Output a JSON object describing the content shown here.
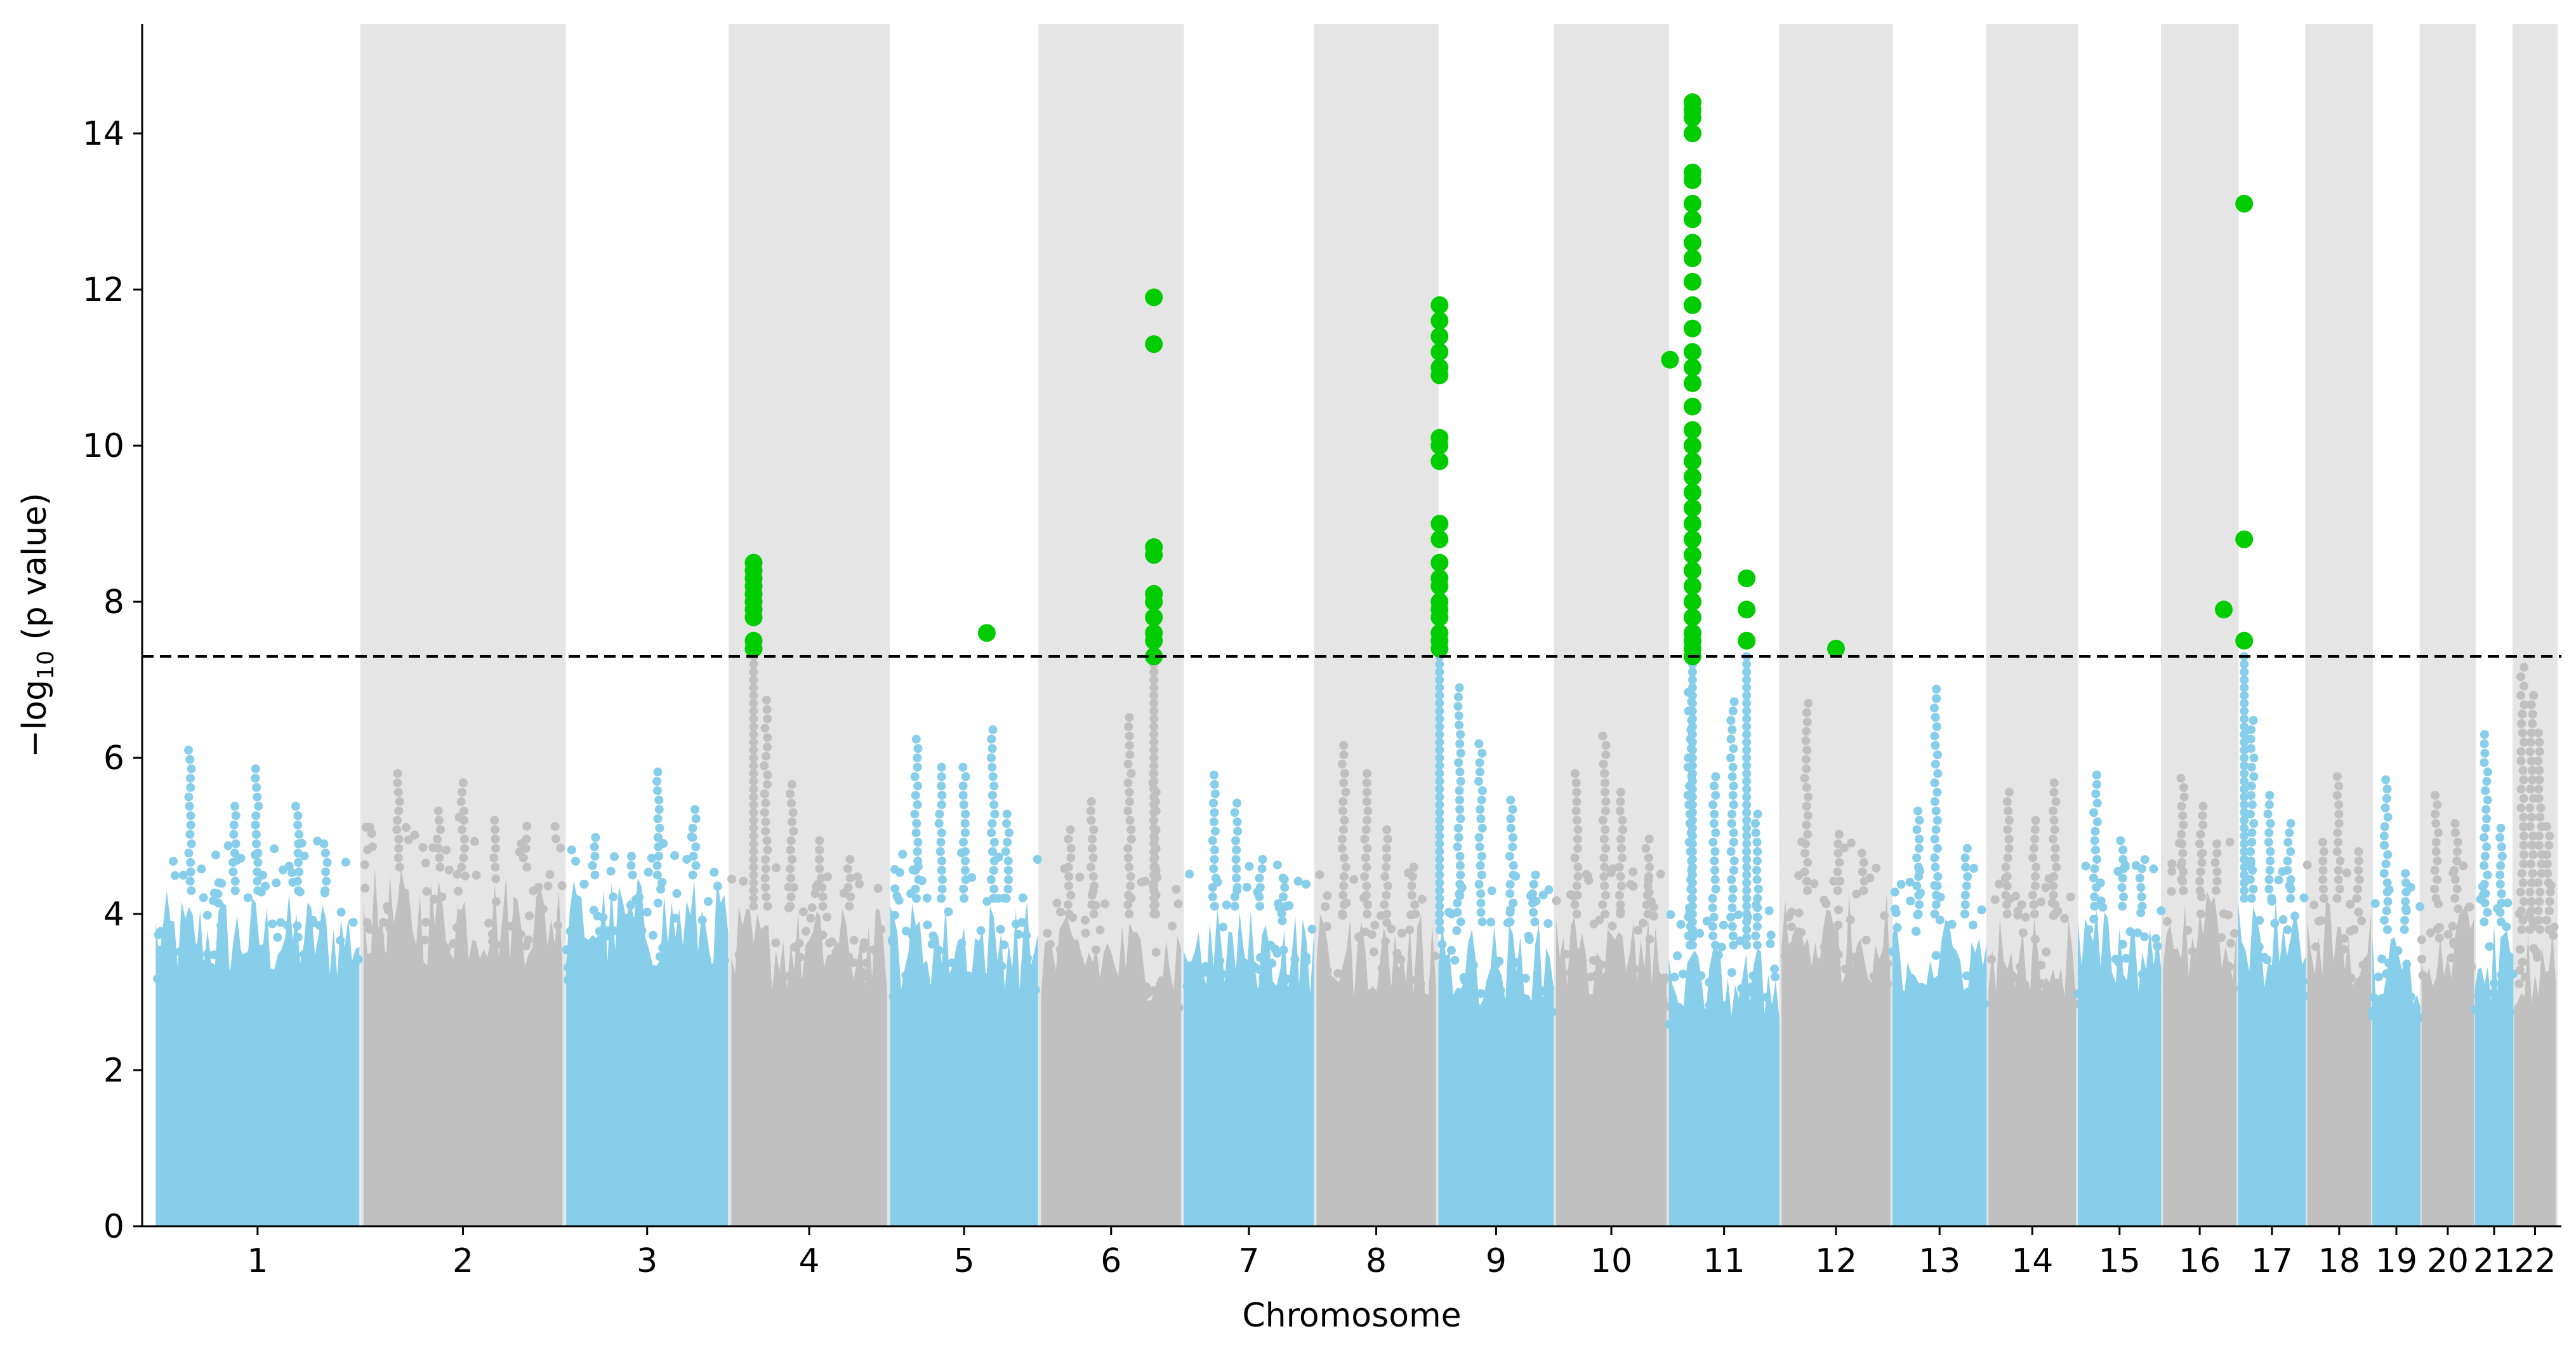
{
  "chart_data": {
    "type": "scatter",
    "subtype": "manhattan",
    "xlabel": "Chromosome",
    "ylabel_prefix": "−log",
    "ylabel_sub": "10",
    "ylabel_suffix": " (p value)",
    "ylim": [
      0,
      15.4
    ],
    "yticks": [
      0,
      2,
      4,
      6,
      8,
      10,
      12,
      14
    ],
    "significance_threshold": 7.3,
    "colors": {
      "odd_chromosome_points": "#87CEEB",
      "even_chromosome_points": "#C0C0C0",
      "significant_points": "#00CC00",
      "band": "#E5E5E5",
      "threshold_line": "#000000"
    },
    "chromosomes": [
      {
        "label": "1",
        "start": 0,
        "end": 249,
        "bg_max": 4.3,
        "peaks": [
          6.2,
          5.5,
          5.9,
          5.4,
          4.9
        ],
        "sig": []
      },
      {
        "label": "2",
        "start": 249,
        "end": 492,
        "bg_max": 4.6,
        "peaks": [
          5.9,
          5.4,
          5.7,
          5.2,
          5.0
        ],
        "sig": []
      },
      {
        "label": "3",
        "start": 492,
        "end": 690,
        "bg_max": 4.5,
        "peaks": [
          5.1,
          4.8,
          5.9,
          5.4
        ],
        "sig": []
      },
      {
        "label": "4",
        "start": 690,
        "end": 880,
        "bg_max": 4.1,
        "peaks": [
          6.8,
          5.7,
          5.0,
          4.7
        ],
        "sig": [
          {
            "x": 0.15,
            "y": [
              8.5,
              8.4,
              8.3,
              8.2,
              8.1,
              8.0,
              7.9,
              7.8,
              7.5,
              7.4
            ]
          }
        ]
      },
      {
        "label": "5",
        "start": 880,
        "end": 1061,
        "bg_max": 4.2,
        "peaks": [
          6.3,
          6.0,
          5.9,
          6.4,
          5.3
        ],
        "sig": [
          {
            "x": 0.65,
            "y": [
              7.6
            ]
          }
        ]
      },
      {
        "label": "6",
        "start": 1061,
        "end": 1232,
        "bg_max": 4.0,
        "peaks": [
          5.1,
          5.5,
          6.6,
          5.9
        ],
        "sig": [
          {
            "x": 0.8,
            "y": [
              11.9,
              11.3,
              8.7,
              8.6,
              8.1,
              8.0,
              7.8,
              7.6,
              7.5,
              7.3
            ]
          }
        ]
      },
      {
        "label": "7",
        "start": 1232,
        "end": 1391,
        "bg_max": 4.1,
        "peaks": [
          5.8,
          5.5,
          4.7,
          4.5
        ],
        "sig": []
      },
      {
        "label": "8",
        "start": 1391,
        "end": 1537,
        "bg_max": 4.0,
        "peaks": [
          6.2,
          5.9,
          5.1,
          4.7
        ],
        "sig": []
      },
      {
        "label": "9",
        "start": 1537,
        "end": 1678,
        "bg_max": 3.9,
        "peaks": [
          7.0,
          6.3,
          5.5,
          4.6
        ],
        "sig": [
          {
            "x": 0.02,
            "y": [
              11.8,
              11.6,
              11.4,
              11.2,
              11.0,
              10.9,
              10.1,
              10.0,
              9.8,
              9.0,
              8.8,
              8.5,
              8.3,
              8.2,
              8.0,
              7.9,
              7.8,
              7.6,
              7.5,
              7.4
            ]
          }
        ]
      },
      {
        "label": "10",
        "start": 1678,
        "end": 1813,
        "bg_max": 4.0,
        "peaks": [
          5.9,
          6.4,
          5.6,
          5.0
        ],
        "sig": []
      },
      {
        "label": "11",
        "start": 1813,
        "end": 1948,
        "bg_max": 3.6,
        "peaks": [
          6.9,
          5.8,
          6.8,
          5.4
        ],
        "sig": [
          {
            "x": 0.02,
            "y": [
              11.1
            ]
          },
          {
            "x": 0.22,
            "y": [
              14.4,
              14.3,
              14.2,
              14.0,
              13.5,
              13.4,
              13.1,
              12.9,
              12.6,
              12.4,
              12.1,
              11.8,
              11.5,
              11.2,
              11.0,
              10.8,
              10.5,
              10.2,
              10.0,
              9.8,
              9.6,
              9.4,
              9.2,
              9.0,
              8.8,
              8.6,
              8.4,
              8.2,
              8.0,
              7.8,
              7.6,
              7.5,
              7.4,
              7.3
            ]
          },
          {
            "x": 0.7,
            "y": [
              8.3,
              7.9,
              7.5
            ]
          }
        ]
      },
      {
        "label": "12",
        "start": 1948,
        "end": 2081,
        "bg_max": 4.3,
        "peaks": [
          6.8,
          5.1,
          4.8
        ],
        "sig": [
          {
            "x": 0.5,
            "y": [
              7.4
            ]
          }
        ]
      },
      {
        "label": "13",
        "start": 2081,
        "end": 2196,
        "bg_max": 4.0,
        "peaks": [
          5.4,
          6.9,
          4.9
        ],
        "sig": []
      },
      {
        "label": "14",
        "start": 2196,
        "end": 2303,
        "bg_max": 4.0,
        "peaks": [
          5.6,
          5.3,
          5.7
        ],
        "sig": []
      },
      {
        "label": "15",
        "start": 2303,
        "end": 2405,
        "bg_max": 4.1,
        "peaks": [
          5.9,
          5.0,
          4.6
        ],
        "sig": []
      },
      {
        "label": "16",
        "start": 2405,
        "end": 2495,
        "bg_max": 4.3,
        "peaks": [
          5.8,
          5.4,
          4.9
        ],
        "sig": [
          {
            "x": 0.82,
            "y": [
              7.9
            ]
          }
        ]
      },
      {
        "label": "17",
        "start": 2495,
        "end": 2578,
        "bg_max": 4.2,
        "peaks": [
          6.5,
          5.6,
          5.2
        ],
        "sig": [
          {
            "x": 0.1,
            "y": [
              13.1,
              8.8,
              7.5
            ]
          }
        ]
      },
      {
        "label": "18",
        "start": 2578,
        "end": 2656,
        "bg_max": 4.2,
        "peaks": [
          5.0,
          5.8,
          4.9
        ],
        "sig": []
      },
      {
        "label": "19",
        "start": 2656,
        "end": 2715,
        "bg_max": 3.8,
        "peaks": [
          5.8,
          4.6
        ],
        "sig": []
      },
      {
        "label": "20",
        "start": 2715,
        "end": 2779,
        "bg_max": 4.2,
        "peaks": [
          5.6,
          5.2
        ],
        "sig": []
      },
      {
        "label": "21",
        "start": 2779,
        "end": 2826,
        "bg_max": 3.9,
        "peaks": [
          6.4,
          5.2
        ],
        "sig": []
      },
      {
        "label": "22",
        "start": 2826,
        "end": 2877,
        "bg_max": 3.8,
        "peaks": [
          7.2,
          6.9,
          6.4,
          5.2
        ],
        "sig": []
      }
    ]
  }
}
